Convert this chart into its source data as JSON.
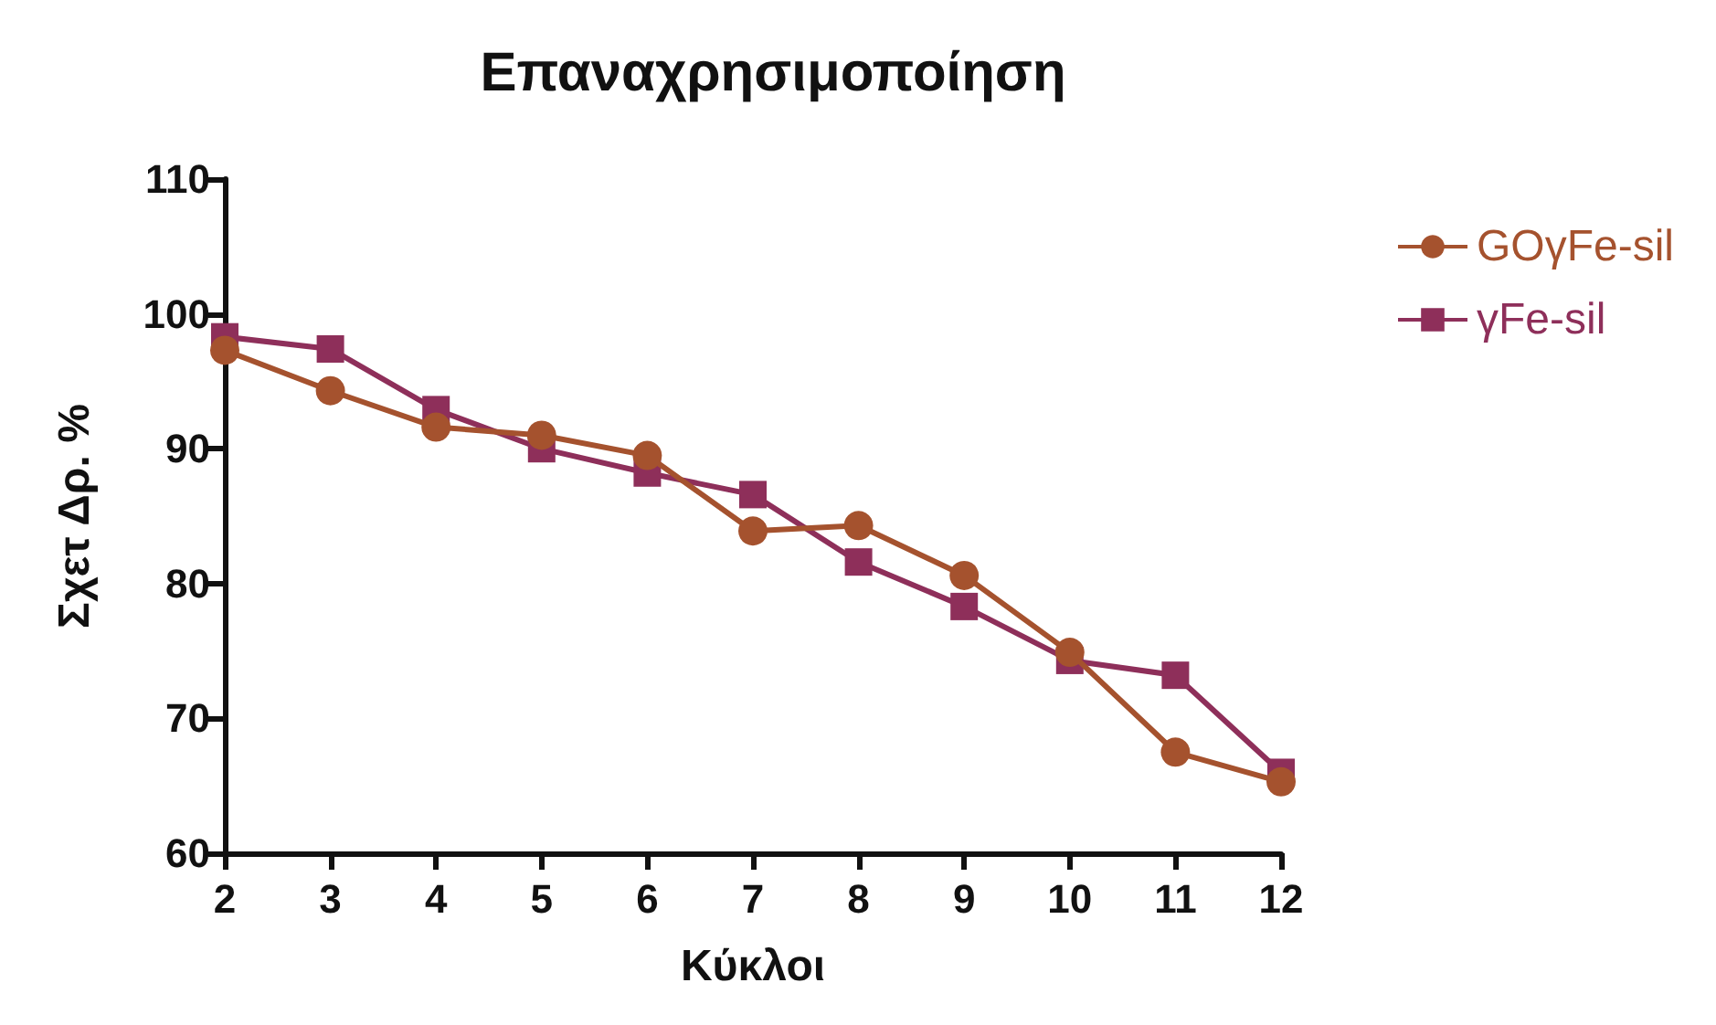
{
  "chart_data": {
    "type": "line",
    "title": "Επαναχρησιμοποίηση",
    "xlabel": "Κύκλοι",
    "ylabel": "Σχετ Δρ. %",
    "categories": [
      "2",
      "3",
      "4",
      "5",
      "6",
      "7",
      "8",
      "9",
      "10",
      "11",
      "12"
    ],
    "series": [
      {
        "name": "GOγFe-sil",
        "color": "#a5522e",
        "marker": "circle",
        "values": [
          97.3,
          94.3,
          91.6,
          91.0,
          89.5,
          83.9,
          84.3,
          80.6,
          74.9,
          67.5,
          65.3
        ]
      },
      {
        "name": "γFe-sil",
        "color": "#8e2f5a",
        "marker": "square",
        "values": [
          98.3,
          97.4,
          92.9,
          90.0,
          88.2,
          86.6,
          81.6,
          78.3,
          74.3,
          73.2,
          66.0
        ]
      }
    ],
    "ylim": [
      60,
      110
    ],
    "yticks": [
      60,
      70,
      80,
      90,
      100,
      110
    ],
    "grid": false,
    "legend": "top right",
    "line_style": "solid"
  }
}
